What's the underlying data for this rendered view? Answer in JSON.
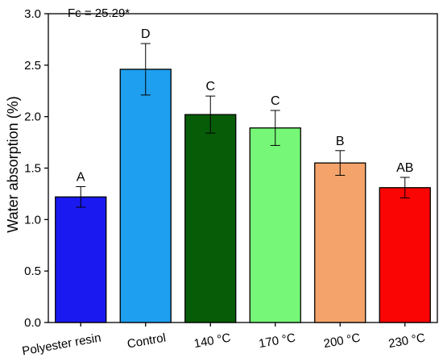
{
  "chart_data": {
    "type": "bar",
    "annotation": "Fc = 25.29*",
    "ylabel": "Water absorption (%)",
    "xlabel": "",
    "ylim": [
      0,
      3.0
    ],
    "yticks": [
      0.0,
      0.5,
      1.0,
      1.5,
      2.0,
      2.5,
      3.0
    ],
    "ytick_labels": [
      "0.0",
      "0.5",
      "1.0",
      "1.5",
      "2.0",
      "2.5",
      "3.0"
    ],
    "categories": [
      "Polyester resin",
      "Control",
      "140 °C",
      "170 °C",
      "200 °C",
      "230 °C"
    ],
    "values": [
      1.22,
      2.46,
      2.02,
      1.89,
      1.55,
      1.31
    ],
    "errors": [
      0.1,
      0.25,
      0.18,
      0.17,
      0.12,
      0.1
    ],
    "letters": [
      "A",
      "D",
      "C",
      "C",
      "B",
      "AB"
    ],
    "colors": [
      "#1a1af0",
      "#1e9ff0",
      "#075c07",
      "#77f777",
      "#f4a46a",
      "#fb0404"
    ],
    "grid": false,
    "legend": "none"
  }
}
